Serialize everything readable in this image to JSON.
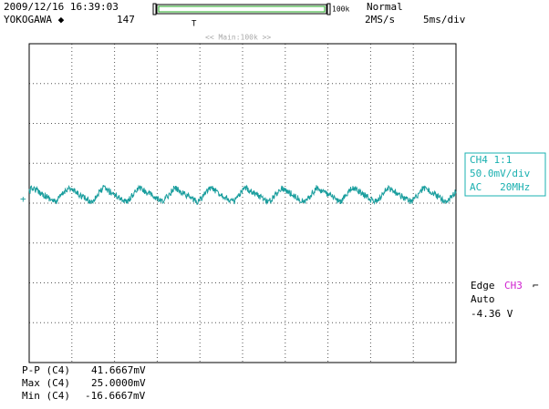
{
  "header": {
    "timestamp": "2009/12/16 16:39:03",
    "brand": "YOKOGAWA ◆",
    "record_length": "147",
    "zoom_label": "100k",
    "mode": "Normal",
    "sample_rate": "2MS/s",
    "time_div": "5ms/div",
    "zoom_window": "<< Main:100k >>"
  },
  "channel": {
    "lines": [
      "CH4 1:1",
      "50.0mV/div",
      "AC   20MHz"
    ]
  },
  "trigger": {
    "type": "Edge",
    "source": "CH3",
    "mode": "Auto",
    "level": "-4.36 V"
  },
  "measurements": [
    [
      "P-P (C4)",
      "41.6667mV"
    ],
    [
      "Max (C4)",
      "25.0000mV"
    ],
    [
      "Min (C4)",
      "-16.6667mV"
    ]
  ]
}
